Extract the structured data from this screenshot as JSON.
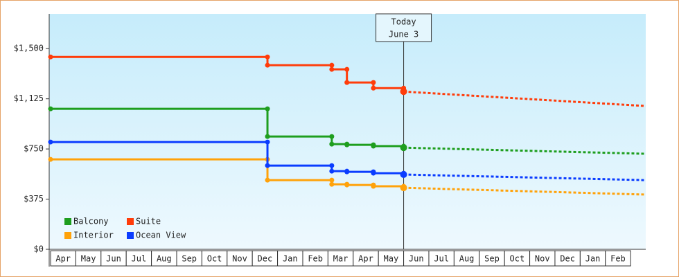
{
  "chart_data": {
    "type": "step-line",
    "categories": [
      "Apr",
      "May",
      "Jun",
      "Jul",
      "Aug",
      "Sep",
      "Oct",
      "Nov",
      "Dec",
      "Jan",
      "Feb",
      "Mar",
      "Apr",
      "May",
      "Jun",
      "Jul",
      "Aug",
      "Sep",
      "Oct",
      "Nov",
      "Dec",
      "Jan",
      "Feb"
    ],
    "xlim": [
      0,
      23.6
    ],
    "ylim": [
      0,
      1760
    ],
    "yticks": [
      {
        "value": 0,
        "label": "$0"
      },
      {
        "value": 375,
        "label": "$375"
      },
      {
        "value": 750,
        "label": "$750"
      },
      {
        "value": 1125,
        "label": "$1,125"
      },
      {
        "value": 1500,
        "label": "$1,500"
      }
    ],
    "grid": false,
    "legend": "bottom-left",
    "annotation": {
      "lines": [
        "Today",
        "June 3"
      ],
      "x": 14.0
    },
    "series": [
      {
        "name": "Balcony",
        "color": "#1e9e1e",
        "x": [
          0,
          8.6,
          11.15,
          11.75,
          12.8,
          14.0
        ],
        "values": [
          1050,
          843,
          786,
          781,
          771,
          760
        ],
        "forecast_x": [
          14.0,
          23.6
        ],
        "forecast_values": [
          760,
          714
        ]
      },
      {
        "name": "Suite",
        "color": "#ff3c0a",
        "x": [
          0,
          8.6,
          11.15,
          11.75,
          12.8,
          14.0
        ],
        "values": [
          1438,
          1376,
          1345,
          1247,
          1205,
          1179
        ],
        "forecast_x": [
          14.0,
          23.6
        ],
        "forecast_values": [
          1179,
          1071
        ]
      },
      {
        "name": "Interior",
        "color": "#ffa20a",
        "x": [
          0,
          8.6,
          11.15,
          11.75,
          12.8,
          14.0
        ],
        "values": [
          672,
          517,
          486,
          481,
          471,
          460
        ],
        "forecast_x": [
          14.0,
          23.6
        ],
        "forecast_values": [
          460,
          409
        ]
      },
      {
        "name": "Ocean View",
        "color": "#0a3cff",
        "x": [
          0,
          8.6,
          11.15,
          11.75,
          12.8,
          14.0
        ],
        "values": [
          802,
          626,
          584,
          579,
          569,
          559
        ],
        "forecast_x": [
          14.0,
          23.6
        ],
        "forecast_values": [
          559,
          517
        ]
      }
    ]
  }
}
